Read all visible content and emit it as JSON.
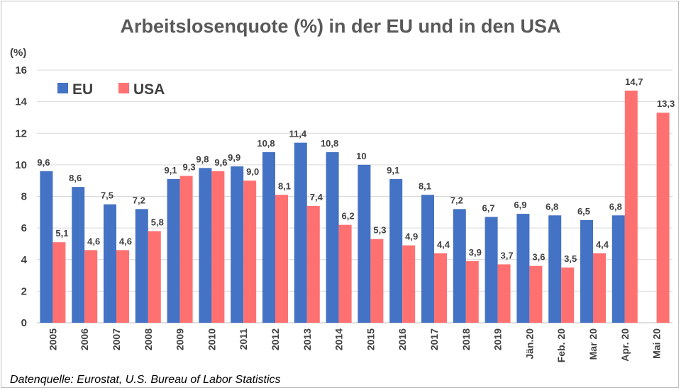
{
  "source_note": "Datenquelle: Eurostat,  U.S. Bureau of Labor Statistics",
  "colors": {
    "eu": "#4472C4",
    "usa": "#FF7171",
    "grid": "#D9D9D9",
    "text": "#404040"
  },
  "chart_data": {
    "type": "bar",
    "title": "Arbeitslosenquote (%) in der EU und in den USA",
    "ylabel": "(%)",
    "xlabel": "",
    "ylim": [
      0,
      16
    ],
    "yticks": [
      "0",
      "2",
      "4",
      "6",
      "8",
      "10",
      "12",
      "14",
      "16"
    ],
    "grid": true,
    "legend_position": "top-left",
    "categories": [
      "2005",
      "2006",
      "2007",
      "2008",
      "2009",
      "2010",
      "2011",
      "2012",
      "2013",
      "2014",
      "2015",
      "2016",
      "2017",
      "2018",
      "2019",
      "Jän.20",
      "Feb. 20",
      "Mar 20",
      "Apr. 20",
      "Mai 20"
    ],
    "series": [
      {
        "name": "EU",
        "values": [
          9.6,
          8.6,
          7.5,
          7.2,
          9.1,
          9.8,
          9.9,
          10.8,
          11.4,
          10.8,
          10,
          9.1,
          8.1,
          7.2,
          6.7,
          6.9,
          6.8,
          6.5,
          6.8,
          null
        ],
        "labels": [
          "9,6",
          "8,6",
          "7,5",
          "7,2",
          "9,1",
          "9,8",
          "9,9",
          "10,8",
          "11,4",
          "10,8",
          "10",
          "9,1",
          "8,1",
          "7,2",
          "6,7",
          "6,9",
          "6,8",
          "6,5",
          "6,8",
          ""
        ]
      },
      {
        "name": "USA",
        "values": [
          5.1,
          4.6,
          4.6,
          5.8,
          9.3,
          9.6,
          9.0,
          8.1,
          7.4,
          6.2,
          5.3,
          4.9,
          4.4,
          3.9,
          3.7,
          3.6,
          3.5,
          4.4,
          14.7,
          13.3
        ],
        "labels": [
          "5,1",
          "4,6",
          "4,6",
          "5,8",
          "9,3",
          "9,6",
          "9,0",
          "8,1",
          "7,4",
          "6,2",
          "5,3",
          "4,9",
          "4,4",
          "3,9",
          "3,7",
          "3,6",
          "3,5",
          "4,4",
          "14,7",
          "13,3"
        ]
      }
    ]
  }
}
